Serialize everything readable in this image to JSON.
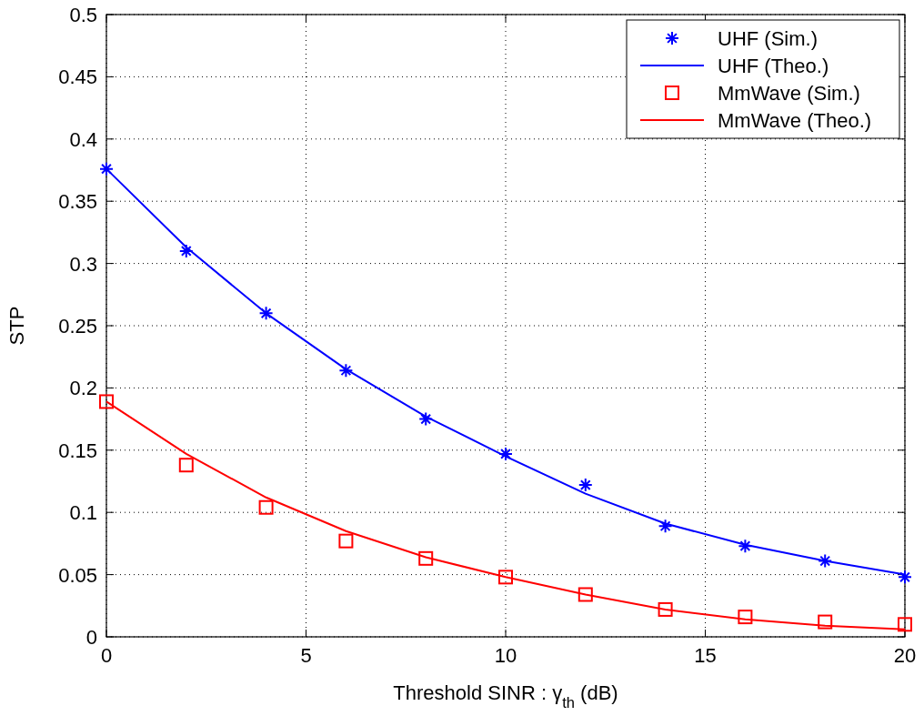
{
  "chart_data": {
    "type": "line",
    "xlabel": "Threshold SINR : γ$_{th}$ (dB)",
    "ylabel": "STP",
    "x": [
      0,
      2,
      4,
      6,
      8,
      10,
      12,
      14,
      16,
      18,
      20
    ],
    "series": [
      {
        "name": "UHF (Sim.)",
        "type": "scatter",
        "marker": "cross",
        "color": "#0000ff",
        "values": [
          0.376,
          0.31,
          0.26,
          0.214,
          0.175,
          0.147,
          0.122,
          0.089,
          0.073,
          0.061,
          0.048
        ]
      },
      {
        "name": "UHF (Theo.)",
        "type": "line",
        "marker": "none",
        "color": "#0000ff",
        "values": [
          0.376,
          0.313,
          0.26,
          0.215,
          0.177,
          0.145,
          0.115,
          0.091,
          0.074,
          0.061,
          0.05
        ]
      },
      {
        "name": "MmWave (Sim.)",
        "type": "scatter",
        "marker": "square",
        "color": "#ff0000",
        "values": [
          0.189,
          0.138,
          0.104,
          0.077,
          0.063,
          0.048,
          0.034,
          0.022,
          0.016,
          0.012,
          0.01
        ]
      },
      {
        "name": "MmWave (Theo.)",
        "type": "line",
        "marker": "none",
        "color": "#ff0000",
        "values": [
          0.189,
          0.147,
          0.112,
          0.085,
          0.064,
          0.048,
          0.034,
          0.022,
          0.014,
          0.009,
          0.006
        ]
      }
    ],
    "xlim": [
      0,
      20
    ],
    "xticks": [
      0,
      5,
      10,
      15,
      20
    ],
    "ylim": [
      0,
      0.5
    ],
    "yticks": [
      0,
      0.05,
      0.1,
      0.15,
      0.2,
      0.25,
      0.3,
      0.35,
      0.4,
      0.45,
      0.5
    ],
    "grid": true,
    "legend": "top right",
    "line_style": "solid"
  }
}
